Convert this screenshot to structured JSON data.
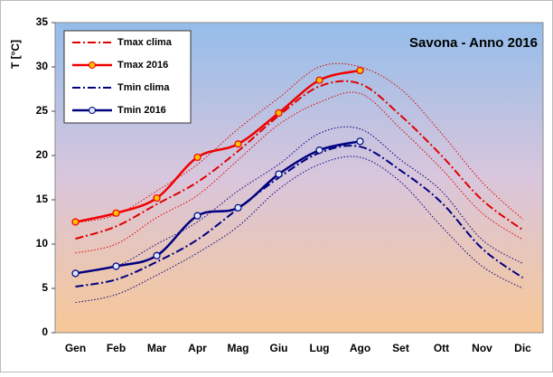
{
  "chart_data": {
    "type": "line",
    "title": "Savona - Anno 2016",
    "y_label": "T [°C]",
    "categories": [
      "Gen",
      "Feb",
      "Mar",
      "Apr",
      "Mag",
      "Giu",
      "Lug",
      "Ago",
      "Set",
      "Ott",
      "Nov",
      "Dic"
    ],
    "ylim": [
      0,
      35
    ],
    "yticks": [
      0,
      5,
      10,
      15,
      20,
      25,
      30,
      35
    ],
    "legend": "top-left",
    "series": [
      {
        "name": "Tmax clima",
        "color": "#e00000",
        "style": "dashdot",
        "markers": false,
        "values": [
          10.6,
          12,
          14.5,
          17,
          20.5,
          24.5,
          27.8,
          28.1,
          24.5,
          20,
          15,
          11.6
        ]
      },
      {
        "name": "Tmax 2016",
        "color": "#f00000",
        "style": "solid",
        "markers": true,
        "marker_fill": "#ffc000",
        "values": [
          12.5,
          13.5,
          15.2,
          19.8,
          21.3,
          24.8,
          28.5,
          29.6,
          null,
          null,
          null,
          null
        ]
      },
      {
        "name": "Tmin clima",
        "color": "#000080",
        "style": "dashdot",
        "markers": false,
        "values": [
          5.2,
          6,
          8,
          10.5,
          14,
          17.5,
          20.3,
          21,
          18.3,
          14.7,
          9.5,
          6.2
        ]
      },
      {
        "name": "Tmin 2016",
        "color": "#000080",
        "style": "solid",
        "markers": true,
        "marker_fill": "#d8e8ff",
        "values": [
          6.7,
          7.5,
          8.7,
          13.2,
          14.1,
          17.9,
          20.6,
          21.6,
          null,
          null,
          null,
          null
        ]
      },
      {
        "color": "#e00000",
        "style": "dotted",
        "markers": false,
        "values": [
          12.4,
          13.3,
          16,
          19,
          23,
          26.5,
          30,
          30,
          27.5,
          22.5,
          17,
          12.8
        ]
      },
      {
        "color": "#e00000",
        "style": "dotted",
        "markers": false,
        "values": [
          9,
          10,
          13,
          15.5,
          19.5,
          23.5,
          26,
          27,
          23,
          18.5,
          13.5,
          10.5
        ]
      },
      {
        "color": "#000080",
        "style": "dotted",
        "markers": false,
        "values": [
          6.8,
          7.5,
          10,
          12.5,
          16,
          19,
          22.5,
          23,
          19.5,
          16,
          10.5,
          7.8
        ]
      },
      {
        "color": "#000080",
        "style": "dotted",
        "markers": false,
        "values": [
          3.4,
          4.3,
          6.5,
          9,
          12,
          16.2,
          19,
          19.8,
          17,
          12,
          7.5,
          5
        ]
      }
    ]
  }
}
